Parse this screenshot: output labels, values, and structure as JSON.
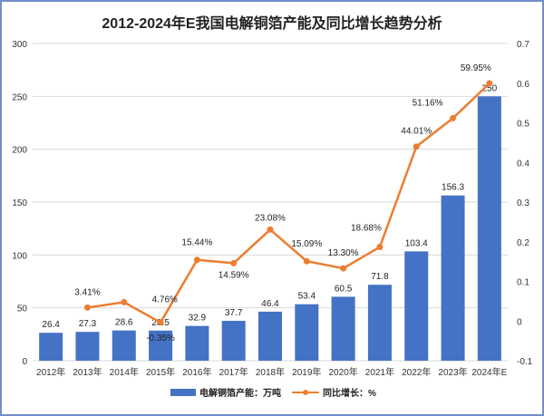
{
  "chart_data": {
    "type": "bar+line",
    "title": "2012-2024年E我国电解铜箔产能及同比增长趋势分析",
    "categories": [
      "2012年",
      "2013年",
      "2014年",
      "2015年",
      "2016年",
      "2017年",
      "2018年",
      "2019年",
      "2020年",
      "2021年",
      "2022年",
      "2023年",
      "2024年E"
    ],
    "series": [
      {
        "name": "电解铜箔产能：万吨",
        "type": "bar",
        "axis": "left",
        "color": "#4472C4",
        "values": [
          26.4,
          27.3,
          28.6,
          28.5,
          32.9,
          37.7,
          46.4,
          53.4,
          60.5,
          71.8,
          103.4,
          156.3,
          250
        ],
        "labels": [
          "26.4",
          "27.3",
          "28.6",
          "28.5",
          "32.9",
          "37.7",
          "46.4",
          "53.4",
          "60.5",
          "71.8",
          "103.4",
          "156.3",
          "250"
        ]
      },
      {
        "name": "同比增长：%",
        "type": "line",
        "axis": "right",
        "color": "#ED7D31",
        "values": [
          null,
          0.0341,
          0.0476,
          -0.0035,
          0.1544,
          0.1459,
          0.2308,
          0.1509,
          0.133,
          0.1868,
          0.4401,
          0.5116,
          0.5995
        ],
        "labels": [
          "",
          "3.41%",
          "4.76%",
          "-0.35%",
          "15.44%",
          "14.59%",
          "23.08%",
          "15.09%",
          "13.30%",
          "18.68%",
          "44.01%",
          "51.16%",
          "59.95%"
        ]
      }
    ],
    "left_axis": {
      "ylim": [
        0,
        300
      ],
      "ticks": [
        "0",
        "50",
        "100",
        "150",
        "200",
        "250",
        "300"
      ]
    },
    "right_axis": {
      "ylim": [
        -0.1,
        0.7
      ],
      "ticks": [
        "-0.1",
        "0",
        "0.1",
        "0.2",
        "0.3",
        "0.4",
        "0.5",
        "0.6",
        "0.7"
      ]
    },
    "grid": true,
    "legend": "bottom"
  }
}
